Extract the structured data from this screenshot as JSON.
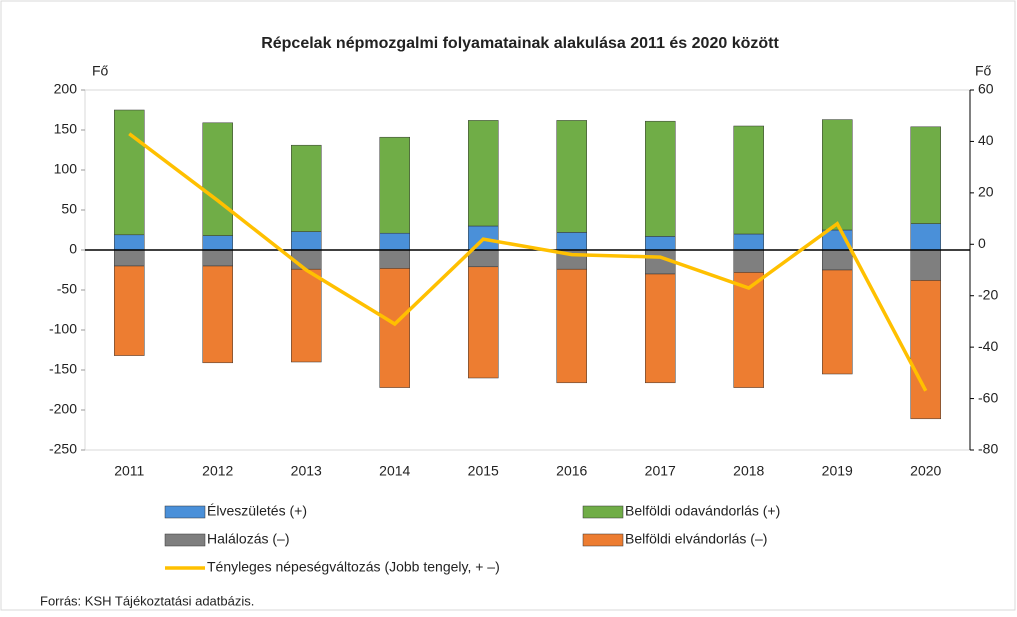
{
  "chart_data": {
    "type": "bar",
    "title": "Répcelak népmozgalmi folyamatainak alakulása 2011 és 2020 között",
    "y_label": "Fő",
    "y2_label": "Fő",
    "source": "Forrás: KSH Tájékoztatási adatbázis.",
    "categories": [
      "2011",
      "2012",
      "2013",
      "2014",
      "2015",
      "2016",
      "2017",
      "2018",
      "2019",
      "2020"
    ],
    "ylim": [
      -250,
      200
    ],
    "yticks": [
      -250,
      -200,
      -150,
      -100,
      -50,
      0,
      50,
      100,
      150,
      200
    ],
    "y2lim": [
      -80,
      60
    ],
    "y2ticks": [
      -80,
      -60,
      -40,
      -20,
      0,
      20,
      40,
      60
    ],
    "stacked": true,
    "series": [
      {
        "name": "Élveszületés (+)",
        "color": "#4a90d9",
        "values": [
          19,
          18,
          23,
          21,
          30,
          22,
          17,
          20,
          25,
          33
        ]
      },
      {
        "name": "Belföldi odavándorlás (+)",
        "color": "#70ad47",
        "values": [
          156,
          141,
          108,
          120,
          132,
          140,
          144,
          135,
          138,
          121
        ]
      },
      {
        "name": "Halálozás (–)",
        "color": "#7f7f7f",
        "values": [
          -20,
          -20,
          -24,
          -23,
          -21,
          -24,
          -30,
          -28,
          -25,
          -38
        ]
      },
      {
        "name": "Belföldi elvándorlás (–)",
        "color": "#ed7d31",
        "values": [
          -112,
          -121,
          -116,
          -149,
          -139,
          -142,
          -136,
          -144,
          -130,
          -173
        ]
      },
      {
        "name": "Tényleges népeségváltozás (Jobb tengely, + –)",
        "color": "#ffc000",
        "type": "line",
        "axis": "y2",
        "values": [
          43,
          17,
          -10,
          -31,
          2,
          -4,
          -5,
          -17,
          8,
          -57
        ]
      }
    ]
  }
}
